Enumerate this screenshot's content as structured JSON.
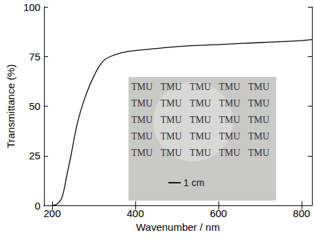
{
  "chart_data": {
    "type": "line",
    "x_label": "Wavenumber / nm",
    "y_label": "Transmittance (%)",
    "x": [
      200,
      210,
      218,
      225,
      235,
      245,
      255,
      265,
      280,
      300,
      320,
      340,
      370,
      400,
      450,
      500,
      600,
      700,
      800,
      825
    ],
    "values": [
      0,
      0.5,
      2,
      5,
      15,
      25,
      36,
      45,
      55,
      65,
      72,
      75,
      77,
      78,
      79,
      80,
      81,
      82,
      83,
      83.5
    ],
    "color": "#000000",
    "xlim": [
      180,
      825
    ],
    "ylim": [
      0,
      100
    ],
    "xticks": [
      200,
      400,
      600,
      800
    ],
    "yticks": [
      0,
      25,
      50,
      75,
      100
    ],
    "grid": false,
    "annotations": [
      "TMU",
      "1 cm"
    ]
  }
}
